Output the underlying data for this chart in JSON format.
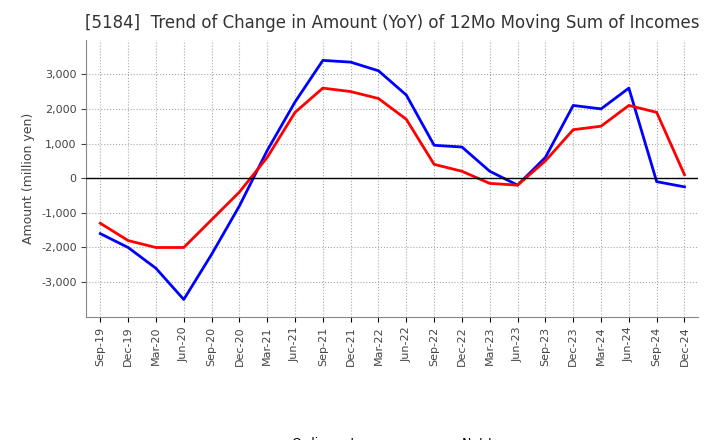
{
  "title": "[5184]  Trend of Change in Amount (YoY) of 12Mo Moving Sum of Incomes",
  "ylabel": "Amount (million yen)",
  "x_labels": [
    "Sep-19",
    "Dec-19",
    "Mar-20",
    "Jun-20",
    "Sep-20",
    "Dec-20",
    "Mar-21",
    "Jun-21",
    "Sep-21",
    "Dec-21",
    "Mar-22",
    "Jun-22",
    "Sep-22",
    "Dec-22",
    "Mar-23",
    "Jun-23",
    "Sep-23",
    "Dec-23",
    "Mar-24",
    "Jun-24",
    "Sep-24",
    "Dec-24"
  ],
  "ordinary_income": [
    -1600,
    -2000,
    -2600,
    -3500,
    -2200,
    -800,
    800,
    2200,
    3400,
    3350,
    3100,
    2400,
    950,
    900,
    200,
    -200,
    600,
    2100,
    2000,
    2600,
    -100,
    -250
  ],
  "net_income": [
    -1300,
    -1800,
    -2000,
    -2000,
    -1200,
    -400,
    600,
    1900,
    2600,
    2500,
    2300,
    1700,
    400,
    200,
    -150,
    -200,
    500,
    1400,
    1500,
    2100,
    1900,
    100
  ],
  "ordinary_color": "#0000FF",
  "net_color": "#FF0000",
  "ylim": [
    -4000,
    4000
  ],
  "yticks": [
    -3000,
    -2000,
    -1000,
    0,
    1000,
    2000,
    3000
  ],
  "grid_color": "#AAAAAA",
  "background_color": "#FFFFFF",
  "title_fontsize": 12,
  "axis_fontsize": 9,
  "tick_fontsize": 8
}
